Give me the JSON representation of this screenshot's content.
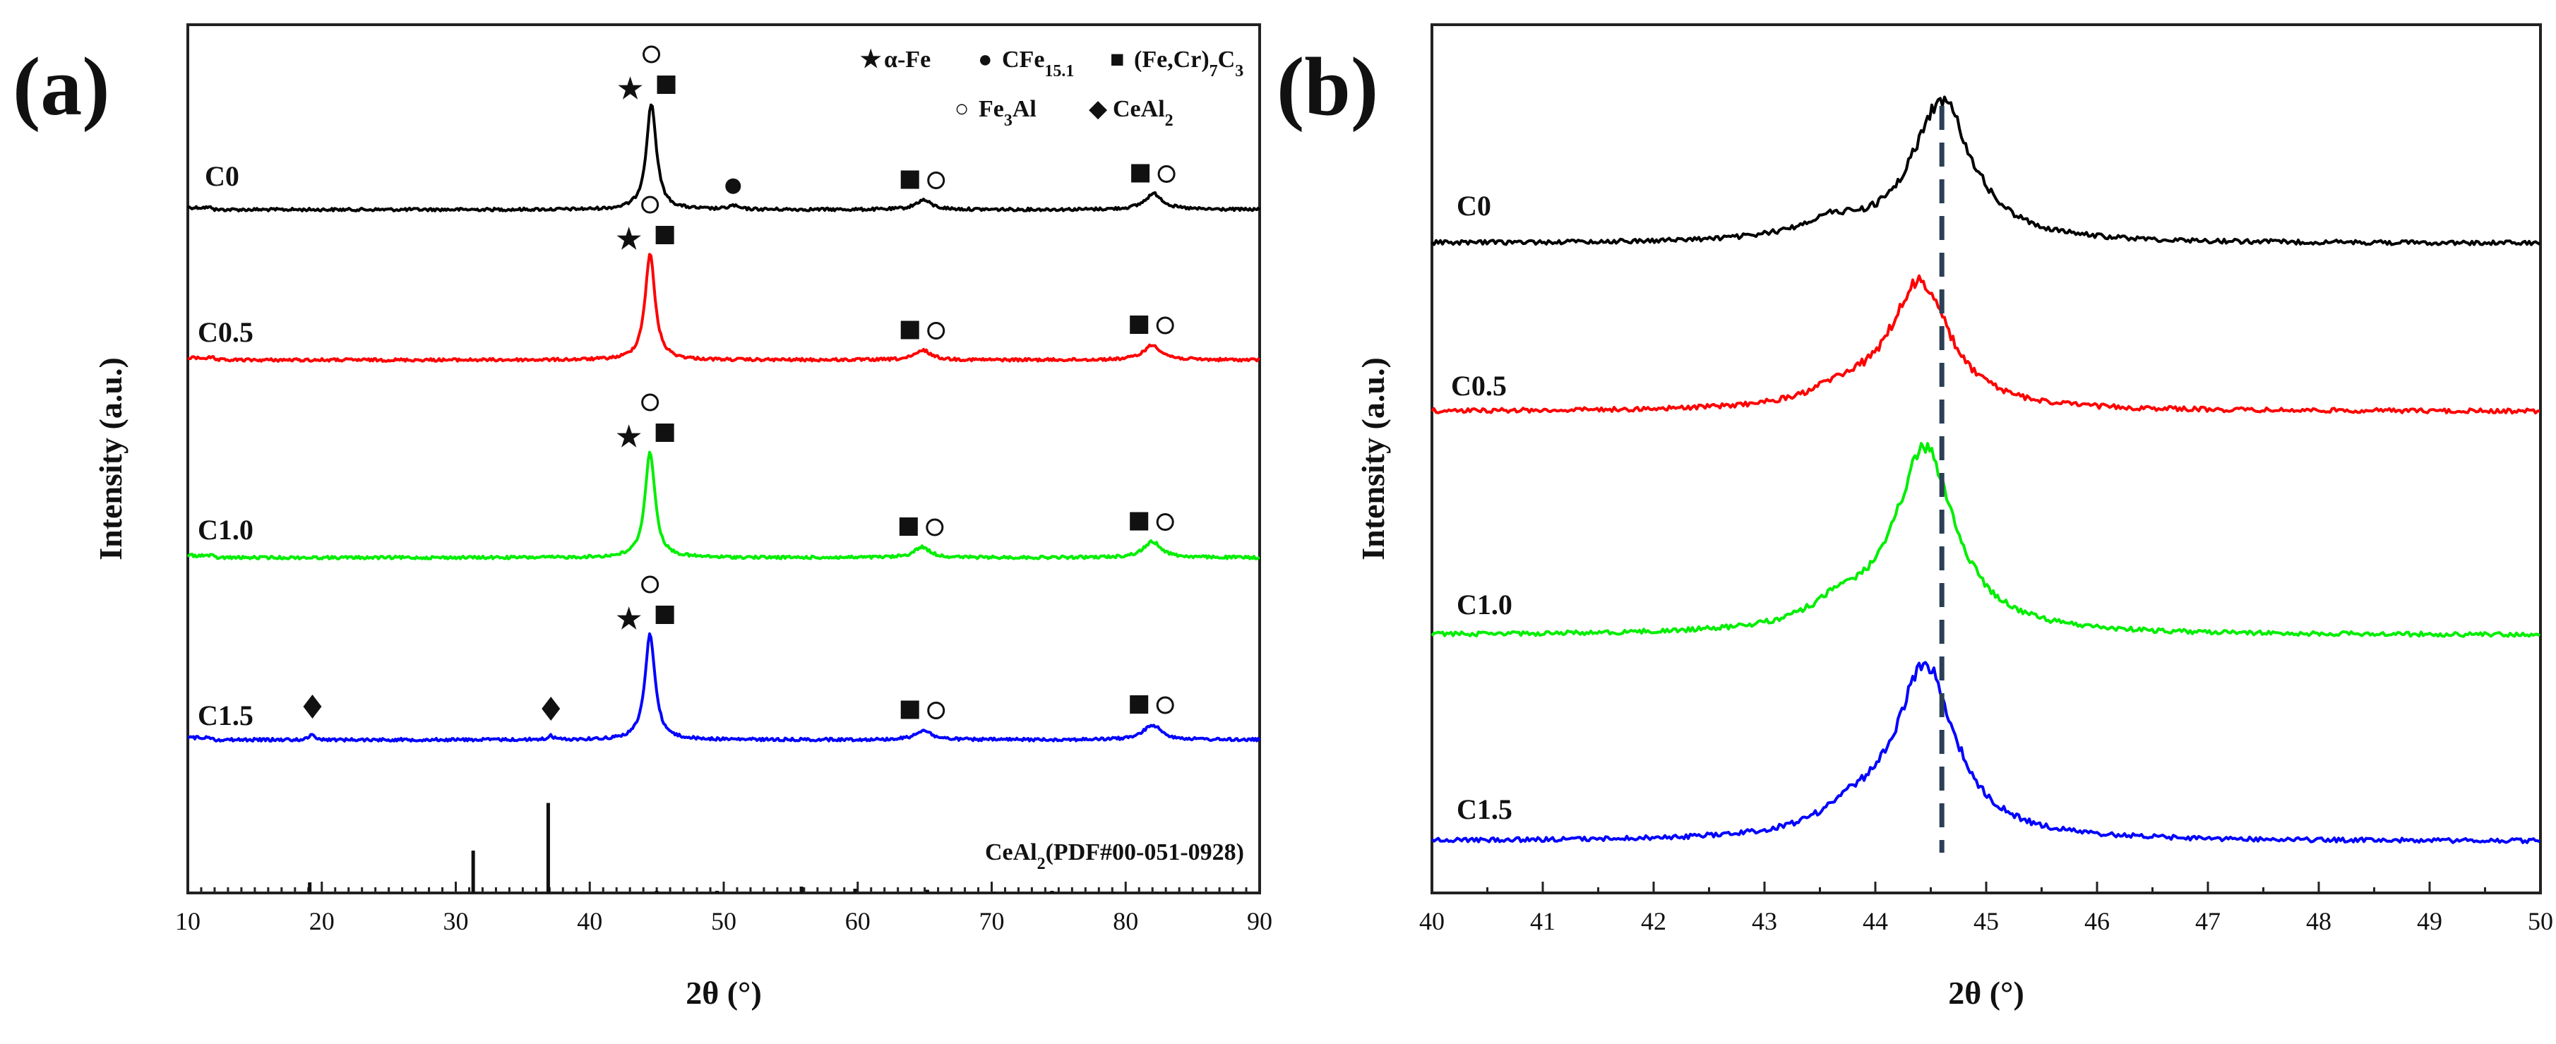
{
  "chart_data": [
    {
      "panel": "(a)",
      "type": "line",
      "xlabel": "2θ (°)",
      "ylabel": "Intensity (a.u.)",
      "xlim": [
        10,
        90
      ],
      "xticks": [
        "10",
        "20",
        "30",
        "40",
        "50",
        "60",
        "70",
        "80",
        "90"
      ],
      "legend": [
        {
          "symbol": "★",
          "text": "α-Fe"
        },
        {
          "symbol": "●",
          "text": "CFe",
          "sub": "15.1"
        },
        {
          "symbol": "■",
          "text": "(Fe,Cr)",
          "sub": "7",
          "text2": "C",
          "sub2": "3"
        },
        {
          "symbol": "○",
          "text": "Fe",
          "sub": "3",
          "text2": "Al"
        },
        {
          "symbol": "◆",
          "text": "CeAl",
          "sub": "2"
        }
      ],
      "series": [
        {
          "name": "C0",
          "color": "#000000",
          "peaks": [
            {
              "x": 44.6,
              "height": 1.0,
              "width": 0.45
            },
            {
              "x": 50.7,
              "height": 0.035,
              "width": 0.4
            },
            {
              "x": 64.9,
              "height": 0.09,
              "width": 0.7
            },
            {
              "x": 82.1,
              "height": 0.15,
              "width": 0.8
            }
          ],
          "annotations": [
            {
              "x": 44.6,
              "symbols": "★■○"
            },
            {
              "x": 50.7,
              "symbols": "●"
            },
            {
              "x": 64.9,
              "symbols": "■○"
            },
            {
              "x": 82.1,
              "symbols": "■○"
            }
          ]
        },
        {
          "name": "C0.5",
          "color": "#ff0000",
          "peaks": [
            {
              "x": 44.5,
              "height": 1.0,
              "width": 0.45
            },
            {
              "x": 64.9,
              "height": 0.09,
              "width": 0.7
            },
            {
              "x": 82.0,
              "height": 0.14,
              "width": 0.8
            }
          ],
          "annotations": [
            {
              "x": 44.5,
              "symbols": "★■○"
            },
            {
              "x": 64.9,
              "symbols": "■○"
            },
            {
              "x": 82.0,
              "symbols": "■○"
            }
          ]
        },
        {
          "name": "C1.0",
          "color": "#00ee00",
          "peaks": [
            {
              "x": 44.5,
              "height": 1.0,
              "width": 0.45
            },
            {
              "x": 64.8,
              "height": 0.1,
              "width": 0.7
            },
            {
              "x": 82.0,
              "height": 0.15,
              "width": 0.8
            }
          ],
          "annotations": [
            {
              "x": 44.5,
              "symbols": "★■○"
            },
            {
              "x": 64.8,
              "symbols": "■○"
            },
            {
              "x": 82.0,
              "symbols": "■○"
            }
          ]
        },
        {
          "name": "C1.5",
          "color": "#0000ff",
          "peaks": [
            {
              "x": 19.3,
              "height": 0.06,
              "width": 0.2
            },
            {
              "x": 37.1,
              "height": 0.04,
              "width": 0.2
            },
            {
              "x": 44.5,
              "height": 1.0,
              "width": 0.45
            },
            {
              "x": 64.9,
              "height": 0.09,
              "width": 0.7
            },
            {
              "x": 82.0,
              "height": 0.14,
              "width": 0.8
            }
          ],
          "annotations": [
            {
              "x": 19.3,
              "symbols": "◆"
            },
            {
              "x": 37.1,
              "symbols": "◆"
            },
            {
              "x": 44.5,
              "symbols": "★■○"
            },
            {
              "x": 64.9,
              "symbols": "■○"
            },
            {
              "x": 82.0,
              "symbols": "■○"
            }
          ]
        }
      ],
      "reference": {
        "label": "CeAl",
        "sub": "2",
        "suffix": "(PDF#00-051-0928)",
        "lines": [
          {
            "x": 15.1,
            "i": 0.01
          },
          {
            "x": 19.1,
            "i": 0.1
          },
          {
            "x": 31.3,
            "i": 0.4
          },
          {
            "x": 36.9,
            "i": 0.85
          },
          {
            "x": 38.9,
            "i": 0.01
          },
          {
            "x": 45.0,
            "i": 0.02
          },
          {
            "x": 49.5,
            "i": 0.02
          },
          {
            "x": 55.8,
            "i": 0.06
          },
          {
            "x": 59.8,
            "i": 0.04
          },
          {
            "x": 65.2,
            "i": 0.03
          },
          {
            "x": 70.2,
            "i": 0.01
          },
          {
            "x": 74.5,
            "i": 0.02
          },
          {
            "x": 79.1,
            "i": 0.01
          },
          {
            "x": 82.3,
            "i": 0.01
          },
          {
            "x": 88.0,
            "i": 0.01
          }
        ]
      }
    },
    {
      "panel": "(b)",
      "type": "line",
      "xlabel": "2θ (°)",
      "ylabel": "Intensity (a.u.)",
      "xlim": [
        40,
        50
      ],
      "xticks": [
        "40",
        "41",
        "42",
        "43",
        "44",
        "45",
        "46",
        "47",
        "48",
        "49",
        "50"
      ],
      "reference_line_x": 44.6,
      "series": [
        {
          "name": "C0",
          "color": "#000000",
          "peak_x": 44.6,
          "shoulder_x": 43.6
        },
        {
          "name": "C0.5",
          "color": "#ff0000",
          "peak_x": 44.4,
          "shoulder_x": 43.7
        },
        {
          "name": "C1.0",
          "color": "#00ee00",
          "peak_x": 44.45,
          "shoulder_x": 43.7
        },
        {
          "name": "C1.5",
          "color": "#0000ff",
          "peak_x": 44.45,
          "shoulder_x": 43.8
        }
      ]
    }
  ]
}
